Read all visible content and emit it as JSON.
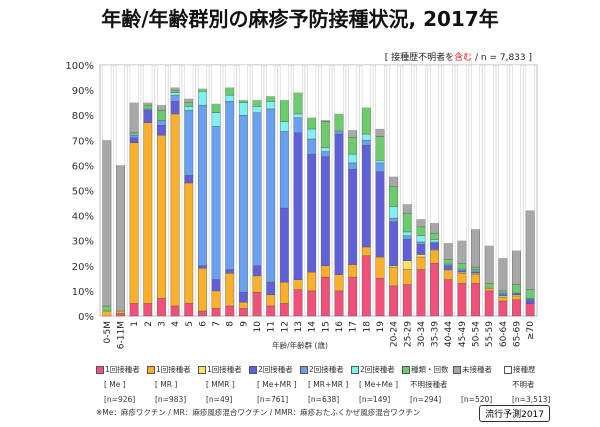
{
  "title": "年齢/年齢群別の麻疹予防接種状況, 2017年",
  "note": {
    "prefix": "[ 接種歴不明者を",
    "highlight": "含む",
    "suffix": "/ n = 7,833 ]"
  },
  "badge": "流行予測2017",
  "footnote": "※Me：麻疹ワクチン / MR：麻疹風疹混合ワクチン / MMR：麻疹おたふくかぜ風疹混合ワクチン",
  "chart_data": {
    "type": "bar",
    "stacked": true,
    "xlabel": "年齢/年齢群 (歳)",
    "ylabel": "",
    "ylim": [
      0,
      100
    ],
    "yticks": [
      "0%",
      "10%",
      "20%",
      "30%",
      "40%",
      "50%",
      "60%",
      "70%",
      "80%",
      "90%",
      "100%"
    ],
    "grid": true,
    "legend_position": "bottom",
    "categories": [
      "0-5M",
      "6-11M",
      "1",
      "2",
      "3",
      "4",
      "5",
      "6",
      "7",
      "8",
      "9",
      "10",
      "11",
      "12",
      "13",
      "14",
      "15",
      "16",
      "17",
      "18",
      "19",
      "20-24",
      "25-29",
      "30-34",
      "35-39",
      "40-44",
      "45-49",
      "50-54",
      "55-59",
      "60-64",
      "65-69",
      "≥70"
    ],
    "series": [
      {
        "name": "1回接種者",
        "sub": "[ Me ]",
        "n": "[n=926]",
        "color": "#f0507a",
        "values": [
          0,
          1,
          5,
          5,
          7,
          4,
          5,
          2,
          3,
          4,
          3,
          9.5,
          4,
          5,
          10.5,
          10,
          15.5,
          10,
          15.5,
          24,
          15,
          12,
          12.5,
          18.5,
          21,
          14.5,
          13,
          13,
          10,
          6,
          6.5,
          5
        ]
      },
      {
        "name": "1回接種者",
        "sub": "[ MR ]",
        "n": "[n=983]",
        "color": "#fbb02c",
        "values": [
          2,
          1,
          64,
          72,
          65,
          76.5,
          48,
          17,
          7,
          13,
          2.5,
          6.5,
          4.5,
          8.5,
          4,
          7.5,
          4.5,
          6.5,
          5,
          3.5,
          8.5,
          7.5,
          6,
          5,
          5,
          3.5,
          4,
          3.5,
          1,
          1.5,
          1.5,
          0
        ]
      },
      {
        "name": "1回接種者",
        "sub": "[ MMR ]",
        "n": "[n=49]",
        "color": "#f9e26a",
        "values": [
          0,
          0,
          0,
          0,
          0,
          0,
          0,
          0,
          0,
          0,
          0,
          0,
          0,
          0,
          0,
          0,
          0,
          0,
          0,
          0,
          0,
          0.5,
          3.5,
          1,
          0.5,
          0.5,
          0.5,
          0.5,
          0.5,
          0.5,
          0.5,
          0
        ]
      },
      {
        "name": "2回接種者",
        "sub": "[ Me+MR ]",
        "n": "[n=761]",
        "color": "#6060d8",
        "values": [
          0,
          0,
          2,
          5,
          4,
          5,
          3,
          1,
          4.5,
          1.5,
          4,
          4,
          5,
          29.5,
          58.5,
          47,
          43.5,
          56,
          38,
          40.5,
          34,
          17.5,
          8.5,
          4,
          2.5,
          1.5,
          0.5,
          0.5,
          0,
          0.5,
          0.5,
          1.5
        ]
      },
      {
        "name": "2回接種者",
        "sub": "[ MR+MR ]",
        "n": "[n=638]",
        "color": "#6aa0f0",
        "values": [
          0,
          0,
          1,
          0.5,
          2,
          2.5,
          26,
          64,
          61,
          67,
          70.5,
          61,
          69,
          30.5,
          6,
          6,
          2,
          1,
          2.5,
          2,
          3.5,
          1.5,
          1.5,
          1,
          0.5,
          0.5,
          0.5,
          0.5,
          0,
          0.5,
          0,
          0.5
        ]
      },
      {
        "name": "2回接種者",
        "sub": "[ Me+Me ]",
        "n": "[n=149]",
        "color": "#80f0f0",
        "values": [
          0,
          0,
          0.5,
          0,
          0,
          1,
          1.5,
          5.5,
          5.5,
          2.5,
          5,
          2.5,
          3,
          4,
          1.5,
          4,
          1.5,
          0.5,
          3.5,
          2.5,
          1,
          4.5,
          1.5,
          2.5,
          1,
          0.5,
          0.5,
          0.5,
          0,
          0.5,
          0.5,
          0
        ]
      },
      {
        "name": "種類・回数",
        "sub": "不明接種者",
        "n": "[n=294]",
        "color": "#6ccc6c",
        "values": [
          2,
          0,
          0.5,
          1.5,
          4,
          1,
          1.5,
          1,
          3.5,
          3,
          1,
          2.5,
          2,
          8.5,
          8.5,
          4.5,
          10.5,
          6.5,
          6.5,
          10.5,
          9.5,
          8,
          7.5,
          3.5,
          2.5,
          1.5,
          2,
          1,
          1.5,
          0.5,
          3,
          3.5
        ]
      },
      {
        "name": "未接種者",
        "sub": "",
        "n": "[n=520]",
        "color": "#a8a8a8",
        "values": [
          66,
          58,
          12,
          1,
          2,
          1,
          1.5,
          0,
          0,
          0,
          0,
          0,
          0,
          0,
          0,
          0,
          0.5,
          0,
          3,
          0,
          3,
          4,
          3.5,
          3,
          4,
          6.5,
          9,
          15,
          15,
          13,
          13.5,
          31.5
        ]
      },
      {
        "name": "接種歴",
        "sub": "不明者",
        "n": "[n=3,513]",
        "color": "#ffffff",
        "values": "remainder"
      }
    ]
  }
}
